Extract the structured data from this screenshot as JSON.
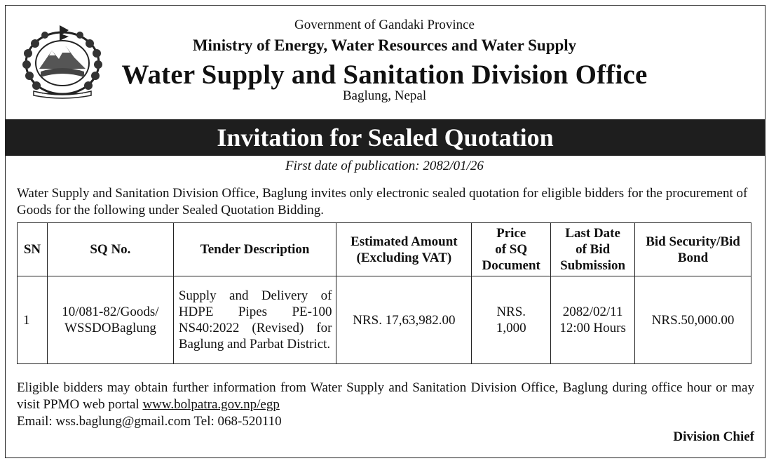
{
  "header": {
    "government": "Government of Gandaki Province",
    "ministry": "Ministry of Energy, Water Resources and Water Supply",
    "office": "Water Supply and Sanitation Division Office",
    "location": "Baglung, Nepal"
  },
  "notice": {
    "title": "Invitation for Sealed Quotation",
    "publication_date": "First date of publication: 2082/01/26",
    "intro": "Water Supply and Sanitation Division Office, Baglung invites only electronic sealed quotation for eligible bidders for the procurement of Goods for the following under Sealed Quotation Bidding."
  },
  "table": {
    "headers": {
      "sn": "SN",
      "sq_no": "SQ No.",
      "description": "Tender Description",
      "amount_l1": "Estimated Amount",
      "amount_l2": "(Excluding VAT)",
      "price_l1": "Price",
      "price_l2": "of SQ",
      "price_l3": "Document",
      "last_date_l1": "Last Date",
      "last_date_l2": "of Bid",
      "last_date_l3": "Submission",
      "security_l1": "Bid Security/Bid",
      "security_l2": "Bond"
    },
    "rows": [
      {
        "sn": "1",
        "sq_no_l1": "10/081-82/Goods/",
        "sq_no_l2": "WSSDOBaglung",
        "description": "Supply and Delivery of HDPE Pipes PE-100 NS40:2022 (Revised) for Baglung and Parbat District.",
        "amount": "NRS. 17,63,982.00",
        "price_l1": "NRS.",
        "price_l2": "1,000",
        "last_date_l1": "2082/02/11",
        "last_date_l2": "12:00 Hours",
        "security": "NRS.50,000.00"
      }
    ]
  },
  "footer": {
    "info": "Eligible bidders may obtain further information from Water Supply and Sanitation Division Office, Baglung during office hour or may visit PPMO web portal",
    "portal_link": "www.bolpatra.gov.np/egp",
    "contact": "Email: wss.baglung@gmail.com Tel: 068-520110",
    "signatory": "Division Chief"
  },
  "colors": {
    "banner_bg": "#1e1e1e",
    "banner_text": "#ffffff",
    "text": "#111111"
  }
}
